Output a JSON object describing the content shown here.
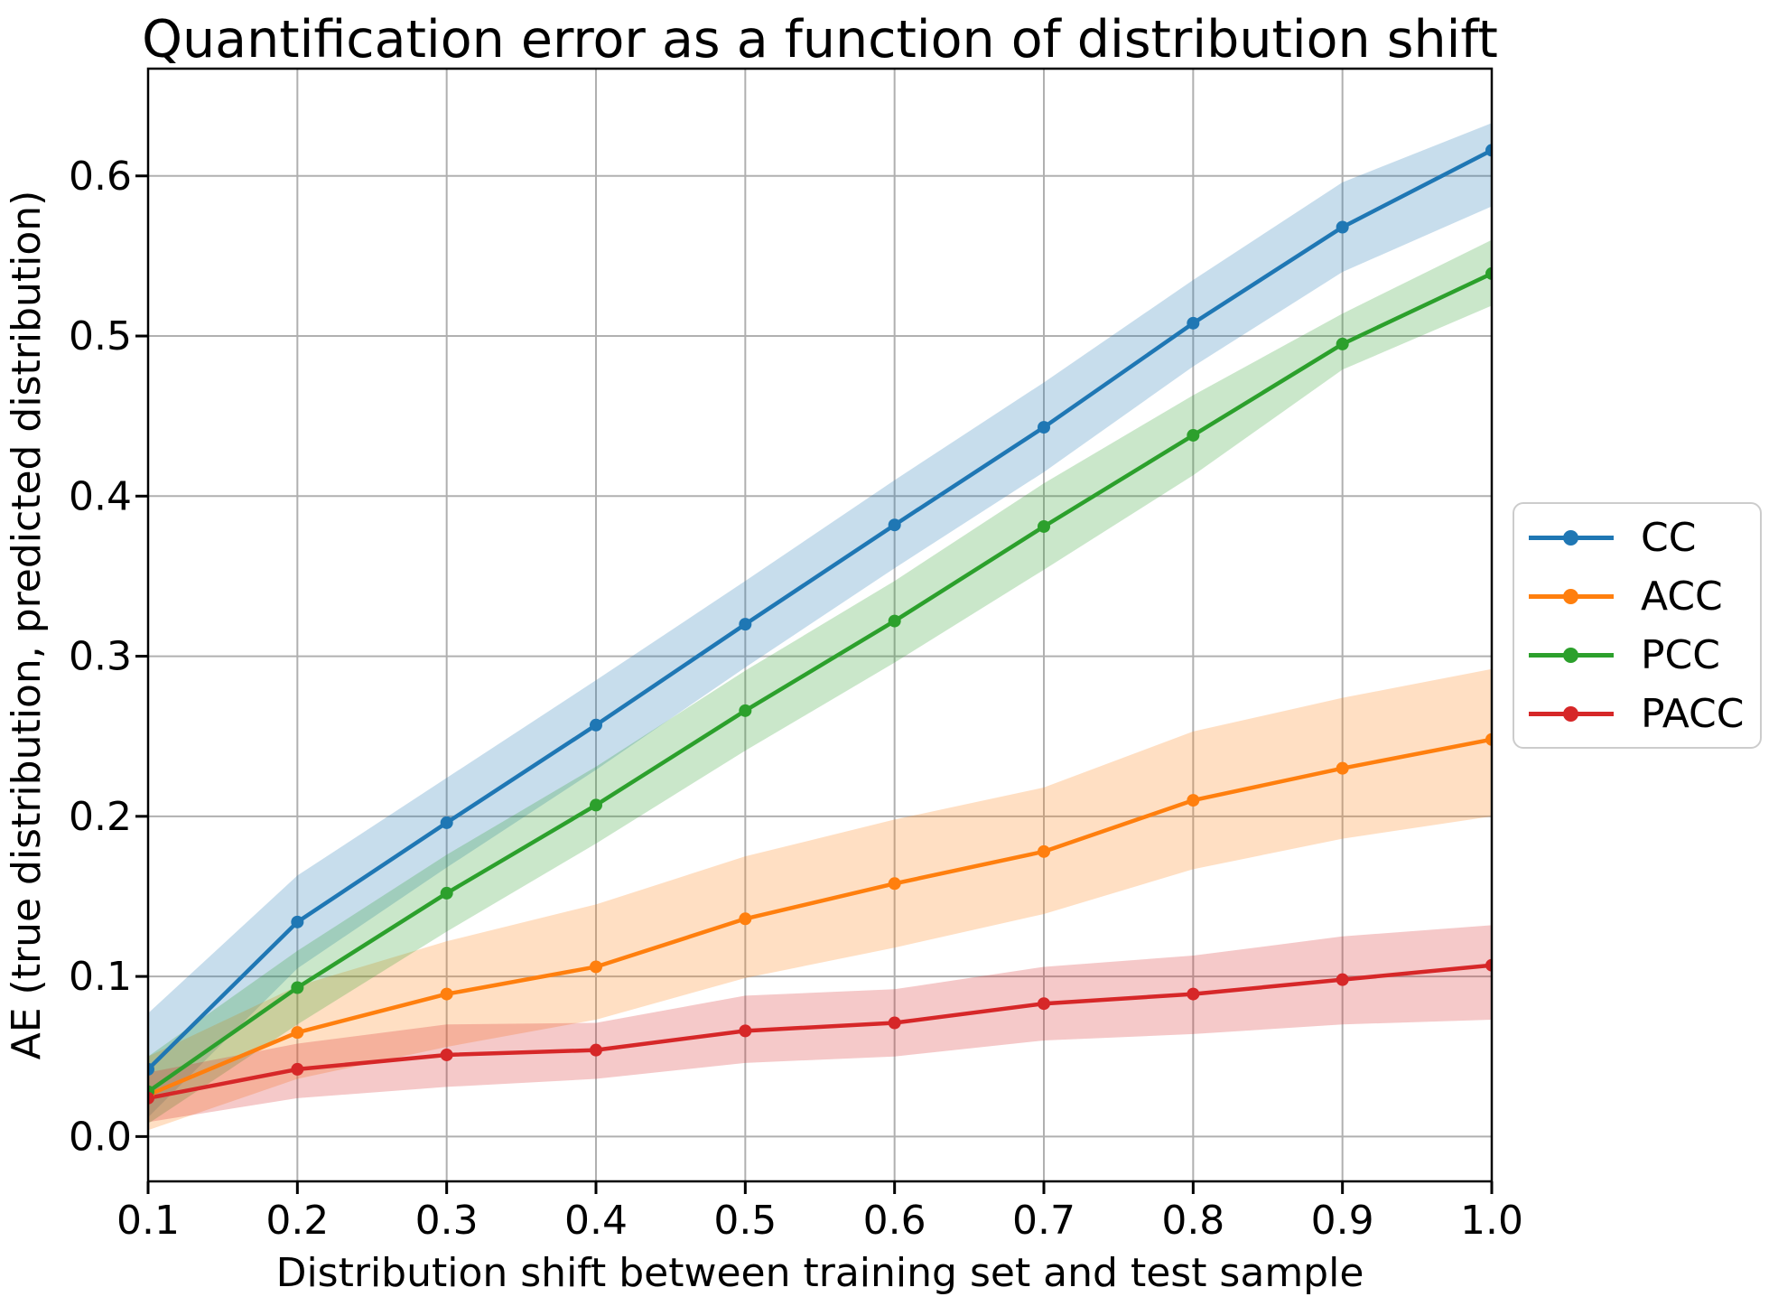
{
  "chart_data": {
    "type": "line",
    "title": "Quantification error as a function of distribution shift",
    "xlabel": "Distribution shift between training set and test sample",
    "ylabel": "AE (true distribution, predicted distribution)",
    "grid": true,
    "legend_position": "center right outside",
    "xlim": [
      0.1,
      1.0
    ],
    "ylim": [
      -0.028,
      0.667
    ],
    "xticks": [
      0.1,
      0.2,
      0.3,
      0.4,
      0.5,
      0.6,
      0.7,
      0.8,
      0.9,
      1.0
    ],
    "xtick_labels": [
      "0.1",
      "0.2",
      "0.3",
      "0.4",
      "0.5",
      "0.6",
      "0.7",
      "0.8",
      "0.9",
      "1.0"
    ],
    "yticks": [
      0.0,
      0.1,
      0.2,
      0.3,
      0.4,
      0.5,
      0.6
    ],
    "ytick_labels": [
      "0.0",
      "0.1",
      "0.2",
      "0.3",
      "0.4",
      "0.5",
      "0.6"
    ],
    "x": [
      0.1,
      0.2,
      0.3,
      0.4,
      0.5,
      0.6,
      0.7,
      0.8,
      0.9,
      1.0
    ],
    "band_opacity": 0.25,
    "grid_color": "#b0b0b0",
    "spine_color": "#000000",
    "series": [
      {
        "name": "CC",
        "color": "#1f77b4",
        "values": [
          0.042,
          0.134,
          0.196,
          0.257,
          0.32,
          0.382,
          0.443,
          0.508,
          0.568,
          0.616
        ],
        "band_lo": [
          0.012,
          0.105,
          0.168,
          0.229,
          0.293,
          0.355,
          0.415,
          0.481,
          0.54,
          0.581
        ],
        "band_hi": [
          0.077,
          0.163,
          0.224,
          0.285,
          0.347,
          0.41,
          0.471,
          0.535,
          0.596,
          0.633
        ]
      },
      {
        "name": "ACC",
        "color": "#ff7f0e",
        "values": [
          0.026,
          0.065,
          0.089,
          0.106,
          0.136,
          0.158,
          0.178,
          0.21,
          0.23,
          0.248
        ],
        "band_lo": [
          0.004,
          0.036,
          0.056,
          0.073,
          0.099,
          0.118,
          0.139,
          0.167,
          0.186,
          0.2
        ],
        "band_hi": [
          0.05,
          0.094,
          0.122,
          0.145,
          0.175,
          0.198,
          0.218,
          0.253,
          0.274,
          0.292
        ]
      },
      {
        "name": "PCC",
        "color": "#2ca02c",
        "values": [
          0.028,
          0.093,
          0.152,
          0.207,
          0.266,
          0.322,
          0.381,
          0.438,
          0.495,
          0.539
        ],
        "band_lo": [
          0.008,
          0.07,
          0.128,
          0.183,
          0.241,
          0.296,
          0.354,
          0.413,
          0.479,
          0.519
        ],
        "band_hi": [
          0.05,
          0.116,
          0.176,
          0.231,
          0.291,
          0.347,
          0.408,
          0.463,
          0.514,
          0.56
        ]
      },
      {
        "name": "PACC",
        "color": "#d62728",
        "values": [
          0.024,
          0.042,
          0.051,
          0.054,
          0.066,
          0.071,
          0.083,
          0.089,
          0.098,
          0.107
        ],
        "band_lo": [
          0.009,
          0.024,
          0.031,
          0.036,
          0.046,
          0.05,
          0.06,
          0.064,
          0.07,
          0.073
        ],
        "band_hi": [
          0.04,
          0.058,
          0.07,
          0.071,
          0.088,
          0.092,
          0.106,
          0.113,
          0.125,
          0.132
        ]
      }
    ]
  }
}
